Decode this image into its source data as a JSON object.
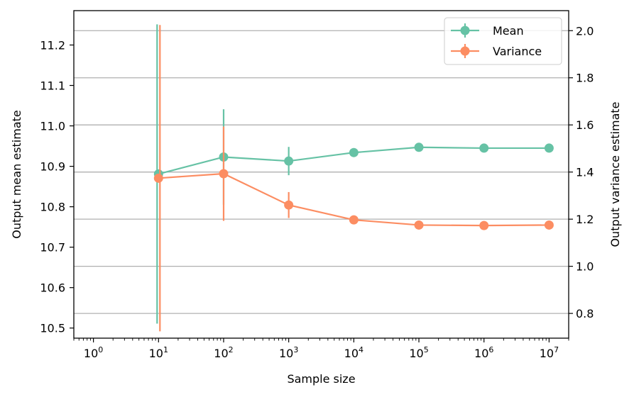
{
  "chart_data": {
    "type": "line",
    "title": "",
    "xlabel": "Sample size",
    "ylabel_left": "Output mean estimate",
    "ylabel_right": "Output variance estimate",
    "x_scale": "log",
    "xlim": [
      0.5,
      20000000
    ],
    "ylim_left": [
      10.475,
      11.285
    ],
    "ylim_right": [
      0.695,
      2.085
    ],
    "x_ticks": [
      {
        "value": 1,
        "base": "10",
        "exp": "0"
      },
      {
        "value": 10,
        "base": "10",
        "exp": "1"
      },
      {
        "value": 100,
        "base": "10",
        "exp": "2"
      },
      {
        "value": 1000,
        "base": "10",
        "exp": "3"
      },
      {
        "value": 10000,
        "base": "10",
        "exp": "4"
      },
      {
        "value": 100000,
        "base": "10",
        "exp": "5"
      },
      {
        "value": 1000000,
        "base": "10",
        "exp": "6"
      },
      {
        "value": 10000000,
        "base": "10",
        "exp": "7"
      }
    ],
    "y_left_ticks": [
      {
        "value": 10.5,
        "label": "10.5"
      },
      {
        "value": 10.6,
        "label": "10.6"
      },
      {
        "value": 10.7,
        "label": "10.7"
      },
      {
        "value": 10.8,
        "label": "10.8"
      },
      {
        "value": 10.9,
        "label": "10.9"
      },
      {
        "value": 11.0,
        "label": "11.0"
      },
      {
        "value": 11.1,
        "label": "11.1"
      },
      {
        "value": 11.2,
        "label": "11.2"
      }
    ],
    "y_right_ticks": [
      {
        "value": 0.8,
        "label": "0.8"
      },
      {
        "value": 1.0,
        "label": "1.0"
      },
      {
        "value": 1.2,
        "label": "1.2"
      },
      {
        "value": 1.4,
        "label": "1.4"
      },
      {
        "value": 1.6,
        "label": "1.6"
      },
      {
        "value": 1.8,
        "label": "1.8"
      },
      {
        "value": 2.0,
        "label": "2.0"
      }
    ],
    "grid": "horizontal lines at right-axis ticks",
    "legend_position": "top-right",
    "x": [
      10,
      100,
      1000,
      10000,
      100000,
      1000000,
      10000000
    ],
    "series": [
      {
        "name": "Mean",
        "axis": "left",
        "color": "#66c2a5",
        "values": [
          10.881,
          10.923,
          10.913,
          10.934,
          10.947,
          10.945,
          10.945
        ],
        "errors": [
          0.37,
          0.118,
          0.035,
          0.0,
          0.0,
          0.0,
          0.0
        ]
      },
      {
        "name": "Variance",
        "axis": "right",
        "color": "#fc8d62",
        "values": [
          1.374,
          1.393,
          1.26,
          1.197,
          1.175,
          1.173,
          1.175
        ],
        "errors": [
          0.65,
          0.2,
          0.055,
          0.0,
          0.0,
          0.0,
          0.0
        ]
      }
    ]
  }
}
